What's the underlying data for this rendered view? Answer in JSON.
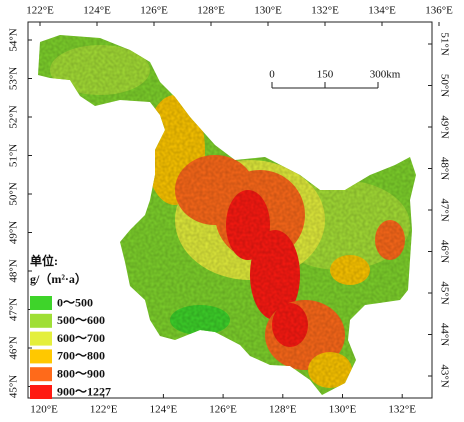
{
  "top_longitudes": [
    "122°E",
    "124°E",
    "126°E",
    "128°E",
    "130°E",
    "132°E",
    "134°E",
    "136°E"
  ],
  "bottom_longitudes": [
    "120°E",
    "122°E",
    "124°E",
    "126°E",
    "128°E",
    "130°E",
    "132°E"
  ],
  "left_latitudes": [
    "54°N",
    "53°N",
    "52°N",
    "51°N",
    "50°N",
    "49°N",
    "48°N",
    "47°N",
    "46°N",
    "45°N"
  ],
  "right_latitudes": [
    "51°N",
    "50°N",
    "49°N",
    "48°N",
    "47°N",
    "46°N",
    "45°N",
    "44°N",
    "43°N"
  ],
  "scale_bar": {
    "labels": [
      "0",
      "150",
      "300km"
    ]
  },
  "legend": {
    "title_line1": "单位:",
    "title_line2": "g/（m²·a）",
    "items": [
      {
        "label": "0～500",
        "color": "#3ed42a"
      },
      {
        "label": "500～600",
        "color": "#9fdf36"
      },
      {
        "label": "600～700",
        "color": "#e4ef3c"
      },
      {
        "label": "700～800",
        "color": "#ffc800"
      },
      {
        "label": "800～900",
        "color": "#ff6a1a"
      },
      {
        "label": "900～1227",
        "color": "#ff1a12"
      }
    ]
  }
}
